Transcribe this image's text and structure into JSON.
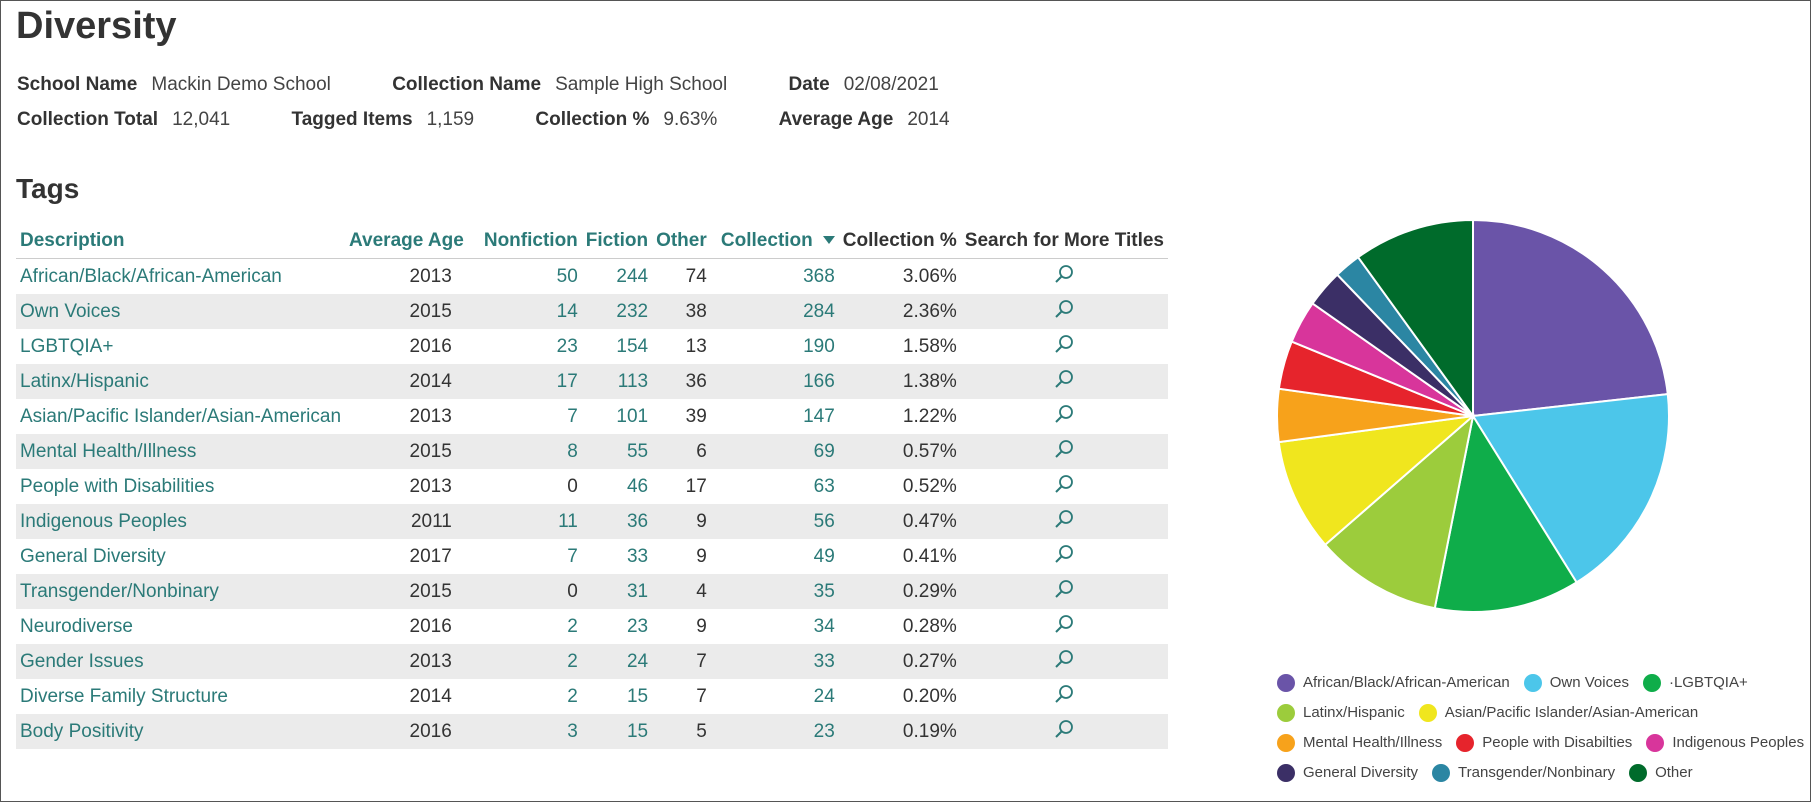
{
  "page": {
    "title": "Diversity",
    "tags_heading": "Tags"
  },
  "meta": {
    "school_name_label": "School Name",
    "school_name": "Mackin Demo School",
    "collection_name_label": "Collection Name",
    "collection_name": "Sample High School",
    "date_label": "Date",
    "date": "02/08/2021",
    "collection_total_label": "Collection Total",
    "collection_total": "12,041",
    "tagged_items_label": "Tagged Items",
    "tagged_items": "1,159",
    "collection_pct_label": "Collection %",
    "collection_pct": "9.63%",
    "average_age_label": "Average Age",
    "average_age": "2014"
  },
  "table": {
    "headers": [
      "Description",
      "Average Age",
      "Nonfiction",
      "Fiction",
      "Other",
      "Collection",
      "Collection %",
      "Search for More Titles"
    ],
    "rows": [
      {
        "desc": "African/Black/African-American",
        "age": "2013",
        "nonfiction": "50",
        "fiction": "244",
        "other": "74",
        "collection": "368",
        "pct": "3.06%"
      },
      {
        "desc": "Own Voices",
        "age": "2015",
        "nonfiction": "14",
        "fiction": "232",
        "other": "38",
        "collection": "284",
        "pct": "2.36%"
      },
      {
        "desc": "LGBTQIA+",
        "age": "2016",
        "nonfiction": "23",
        "fiction": "154",
        "other": "13",
        "collection": "190",
        "pct": "1.58%"
      },
      {
        "desc": "Latinx/Hispanic",
        "age": "2014",
        "nonfiction": "17",
        "fiction": "113",
        "other": "36",
        "collection": "166",
        "pct": "1.38%"
      },
      {
        "desc": "Asian/Pacific Islander/Asian-American",
        "age": "2013",
        "nonfiction": "7",
        "fiction": "101",
        "other": "39",
        "collection": "147",
        "pct": "1.22%"
      },
      {
        "desc": "Mental Health/Illness",
        "age": "2015",
        "nonfiction": "8",
        "fiction": "55",
        "other": "6",
        "collection": "69",
        "pct": "0.57%"
      },
      {
        "desc": "People with Disabilities",
        "age": "2013",
        "nonfiction": "0",
        "fiction": "46",
        "other": "17",
        "collection": "63",
        "pct": "0.52%"
      },
      {
        "desc": "Indigenous Peoples",
        "age": "2011",
        "nonfiction": "11",
        "fiction": "36",
        "other": "9",
        "collection": "56",
        "pct": "0.47%"
      },
      {
        "desc": "General Diversity",
        "age": "2017",
        "nonfiction": "7",
        "fiction": "33",
        "other": "9",
        "collection": "49",
        "pct": "0.41%"
      },
      {
        "desc": "Transgender/Nonbinary",
        "age": "2015",
        "nonfiction": "0",
        "fiction": "31",
        "other": "4",
        "collection": "35",
        "pct": "0.29%"
      },
      {
        "desc": "Neurodiverse",
        "age": "2016",
        "nonfiction": "2",
        "fiction": "23",
        "other": "9",
        "collection": "34",
        "pct": "0.28%"
      },
      {
        "desc": "Gender Issues",
        "age": "2013",
        "nonfiction": "2",
        "fiction": "24",
        "other": "7",
        "collection": "33",
        "pct": "0.27%"
      },
      {
        "desc": "Diverse Family Structure",
        "age": "2014",
        "nonfiction": "2",
        "fiction": "15",
        "other": "7",
        "collection": "24",
        "pct": "0.20%"
      },
      {
        "desc": "Body Positivity",
        "age": "2016",
        "nonfiction": "3",
        "fiction": "15",
        "other": "5",
        "collection": "23",
        "pct": "0.19%"
      }
    ],
    "search_icon": "magnifier-icon"
  },
  "colors": {
    "link": "#2b7a78"
  },
  "chart_data": {
    "type": "pie",
    "slices": [
      {
        "name": "African/Black/African-American",
        "value": 368,
        "color": "#6a54a8"
      },
      {
        "name": "Own Voices",
        "value": 284,
        "color": "#4cc6ea"
      },
      {
        "name": "LGBTQIA+",
        "value": 190,
        "color": "#0fad4a"
      },
      {
        "name": "Latinx/Hispanic",
        "value": 166,
        "color": "#9ccc3c"
      },
      {
        "name": "Asian/Pacific Islander/Asian-American",
        "value": 147,
        "color": "#f0e61e"
      },
      {
        "name": "Mental Health/Illness",
        "value": 69,
        "color": "#f7a21b"
      },
      {
        "name": "People with Disabilties",
        "value": 63,
        "color": "#e6242c"
      },
      {
        "name": "Indigenous Peoples",
        "value": 56,
        "color": "#d8359b"
      },
      {
        "name": "General Diversity",
        "value": 49,
        "color": "#3b2f66"
      },
      {
        "name": "Transgender/Nonbinary",
        "value": 35,
        "color": "#2b86a3"
      },
      {
        "name": "Other",
        "value": 158,
        "color": "#006b2b"
      }
    ],
    "legend_labels": [
      "African/Black/African-American",
      "Own Voices",
      "·LGBTQIA+",
      "Latinx/Hispanic",
      "Asian/Pacific Islander/Asian-American",
      "Mental Health/Illness",
      "People with Disabilties",
      "Indigenous Peoples",
      "General Diversity",
      "Transgender/Nonbinary",
      "Other"
    ],
    "legend": "bottom"
  }
}
